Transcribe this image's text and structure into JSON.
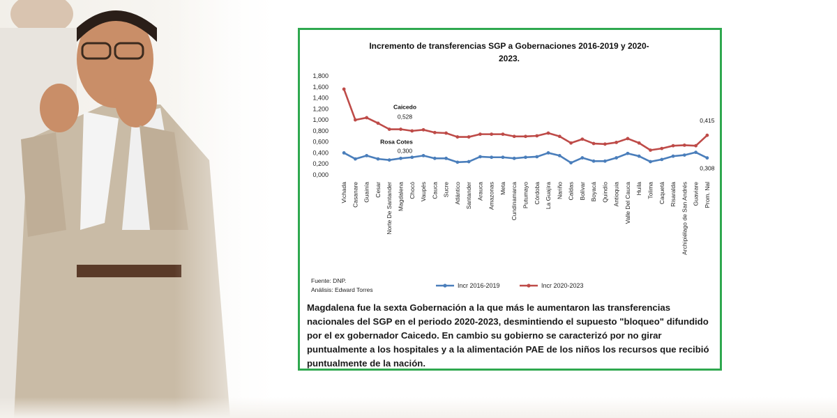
{
  "photo": {
    "alt_subject": "man in beige suit"
  },
  "card": {
    "border_color": "#2fa84f"
  },
  "chart_data": {
    "type": "line",
    "title_line1": "Incremento de transferencias SGP a Gobernaciones 2016-2019 y 2020-",
    "title_line2": "2023.",
    "categories": [
      "Vichada",
      "Casanare",
      "Guainía",
      "Cesar",
      "Norte De Santander",
      "Magdalena",
      "Chocó",
      "Vaupés",
      "Cauca",
      "Sucre",
      "Atlántico",
      "Santander",
      "Arauca",
      "Amazonas",
      "Meta",
      "Cundinamarca",
      "Putumayo",
      "Córdoba",
      "La Guajira",
      "Nariño",
      "Caldas",
      "Bolívar",
      "Boyacá",
      "Quindío",
      "Antioquia",
      "Valle Del Cauca",
      "Huila",
      "Tolima",
      "Caquetá",
      "Risaralda",
      "Archipiélago de San Andrés",
      "Guaviare",
      "Prom. Nal"
    ],
    "ylim": [
      0,
      1.8
    ],
    "yticks": [
      "0,000",
      "0,200",
      "0,400",
      "0,600",
      "0,800",
      "1,000",
      "1,200",
      "1,400",
      "1,600",
      "1,800"
    ],
    "series": [
      {
        "name": "Incr 2016-2019",
        "color": "#4a7ebb",
        "values": [
          0.4,
          0.29,
          0.35,
          0.29,
          0.27,
          0.3,
          0.32,
          0.35,
          0.3,
          0.3,
          0.23,
          0.24,
          0.33,
          0.32,
          0.32,
          0.3,
          0.32,
          0.33,
          0.4,
          0.35,
          0.22,
          0.31,
          0.25,
          0.25,
          0.31,
          0.39,
          0.34,
          0.24,
          0.28,
          0.34,
          0.36,
          0.41,
          0.308
        ]
      },
      {
        "name": "Incr 2020-2023",
        "color": "#be4b48",
        "values": [
          1.56,
          1.0,
          1.04,
          0.94,
          0.83,
          0.83,
          0.8,
          0.82,
          0.77,
          0.76,
          0.69,
          0.69,
          0.74,
          0.74,
          0.74,
          0.7,
          0.7,
          0.71,
          0.76,
          0.7,
          0.58,
          0.65,
          0.57,
          0.56,
          0.59,
          0.66,
          0.58,
          0.45,
          0.48,
          0.53,
          0.54,
          0.53,
          0.72
        ]
      }
    ],
    "annotations": [
      {
        "text": "Caicedo",
        "series": 1,
        "index": 5
      },
      {
        "text": "0,528",
        "series": 1,
        "index": 5
      },
      {
        "text": "Rosa  Cotes",
        "series": 0,
        "index": 5
      },
      {
        "text": "0,300",
        "series": 0,
        "index": 5
      },
      {
        "text": "0,415",
        "series": 1,
        "index": 32
      },
      {
        "text": "0,308",
        "series": 0,
        "index": 32
      }
    ],
    "legend_position": "bottom",
    "source_line1": "Fuente:  DNP.",
    "source_line2": "Análisis: Edward Torres"
  },
  "caption": "Magdalena fue la sexta Gobernación a la que más le aumentaron las transferencias nacionales del SGP en el periodo 2020-2023, desmintiendo el supuesto \"bloqueo\" difundido por el ex gobernador Caicedo. En cambio su gobierno se caracterizó por no girar puntualmente a los hospitales y a la alimentación PAE de los niños los recursos que recibió puntualmente de la nación."
}
